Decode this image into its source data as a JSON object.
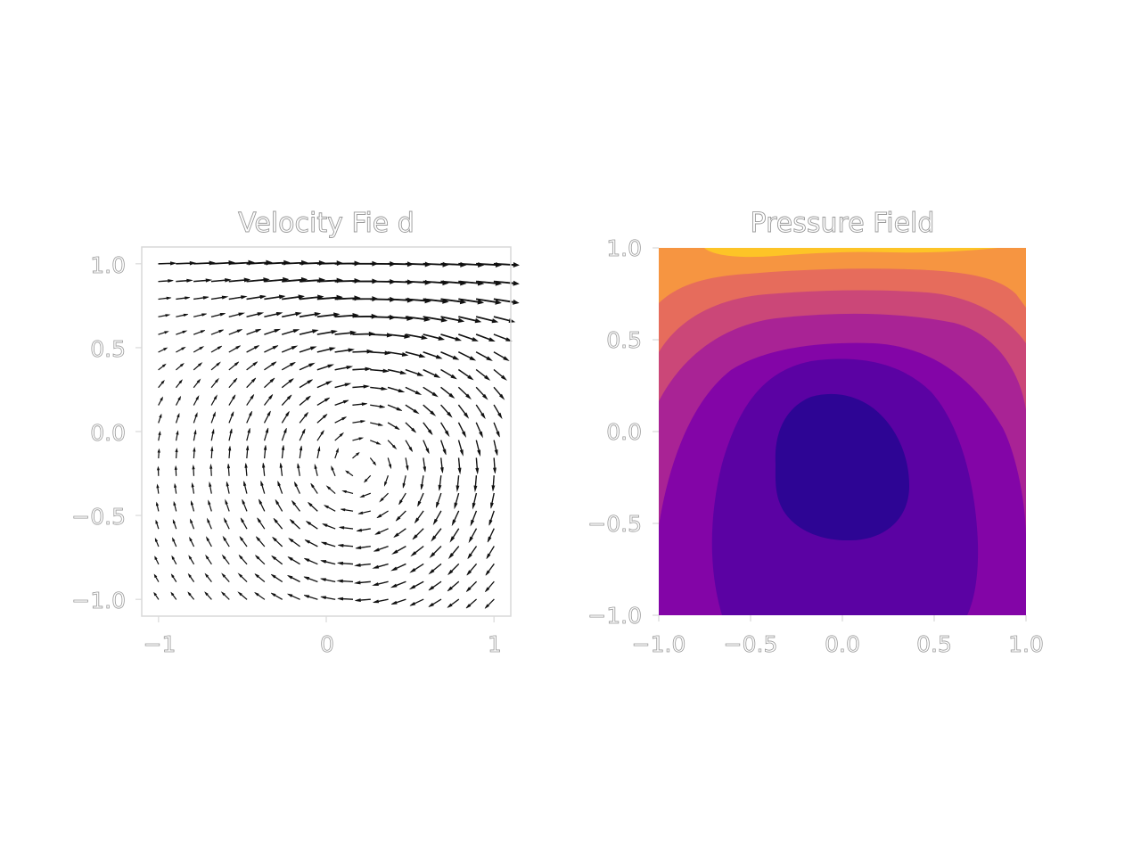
{
  "chart_data": [
    {
      "type": "quiver",
      "title": "Velocity Fie d",
      "xlabel": "",
      "ylabel": "",
      "xlim": [
        -1.1,
        1.1
      ],
      "ylim": [
        -1.1,
        1.1
      ],
      "xticks": [
        -1,
        0,
        1
      ],
      "xtick_labels": [
        "−1",
        "0",
        "1"
      ],
      "yticks": [
        1.0,
        0.5,
        0.0,
        -0.5,
        -1.0
      ],
      "ytick_labels": [
        "1.0",
        "0.5",
        "0.0",
        "−0.5",
        "−1.0"
      ],
      "grid": false,
      "grid_n": 20,
      "field": "lid-driven cavity: strong rightward flow along top (y=1), clockwise vortex centered near (0.2, -0.2), near-zero velocity in lower-left"
    },
    {
      "type": "contourf",
      "title": "Pressure Field",
      "xlabel": "",
      "ylabel": "",
      "xlim": [
        -1.0,
        1.0
      ],
      "ylim": [
        -1.0,
        1.0
      ],
      "xticks": [
        -1.0,
        -0.5,
        0.0,
        0.5,
        1.0
      ],
      "xtick_labels": [
        "−1.0",
        "−0.5",
        "0.0",
        "0.5",
        "1.0"
      ],
      "yticks": [
        1.0,
        0.5,
        0.0,
        -0.5,
        -1.0
      ],
      "ytick_labels": [
        "1.0",
        "0.5",
        "0.0",
        "−0.5",
        "−1.0"
      ],
      "colormap": "plasma",
      "levels": 8,
      "level_colors": [
        "#2d0594",
        "#5b02a3",
        "#8305a7",
        "#a92395",
        "#cb4778",
        "#e66c5c",
        "#f69541",
        "#fdc427",
        "#f0f921"
      ],
      "minimum_location": [
        0.0,
        -0.2
      ],
      "maximum_location": [
        1.0,
        1.0
      ],
      "grid": false
    }
  ]
}
